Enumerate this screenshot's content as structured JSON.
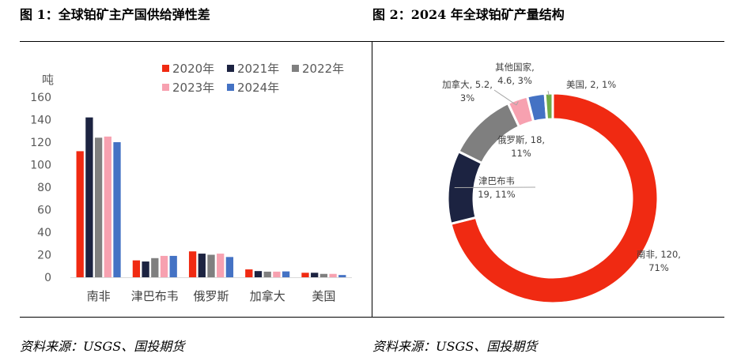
{
  "left_figure": {
    "title": "图 1：全球铂矿主产国供给弹性差",
    "source": "资料来源：USGS、国投期货"
  },
  "right_figure": {
    "title": "图 2：2024 年全球铂矿产量结构",
    "source": "资料来源：USGS、国投期货"
  },
  "chart_data": [
    {
      "type": "bar",
      "title": "",
      "ylabel": "吨",
      "xlabel": "",
      "ylim": [
        0,
        160
      ],
      "yticks": [
        0,
        20,
        40,
        60,
        80,
        100,
        120,
        140,
        160
      ],
      "grid": false,
      "legend_position": "top-right",
      "categories": [
        "南非",
        "津巴布韦",
        "俄罗斯",
        "加拿大",
        "美国"
      ],
      "series": [
        {
          "name": "2020年",
          "color": "#f02a12",
          "values": [
            112,
            15,
            23,
            7,
            4
          ]
        },
        {
          "name": "2021年",
          "color": "#1c2341",
          "values": [
            142,
            14,
            21,
            5.5,
            4
          ]
        },
        {
          "name": "2022年",
          "color": "#7f7f7f",
          "values": [
            124,
            17,
            20,
            5,
            3
          ]
        },
        {
          "name": "2023年",
          "color": "#f7a1b0",
          "values": [
            125,
            19,
            21,
            5,
            3
          ]
        },
        {
          "name": "2024年",
          "color": "#4472c4",
          "values": [
            120,
            19,
            18,
            5.2,
            2
          ]
        }
      ]
    },
    {
      "type": "pie",
      "style": "donut",
      "title": "",
      "slices": [
        {
          "label": "南非",
          "value": 120,
          "percent": "71%",
          "color": "#f02a12",
          "text_lines": [
            "南非, 120,",
            "71%"
          ]
        },
        {
          "label": "津巴布韦",
          "value": 19,
          "percent": "11%",
          "color": "#1c2341",
          "text_lines": [
            "津巴布韦",
            "19, 11%"
          ]
        },
        {
          "label": "俄罗斯",
          "value": 18,
          "percent": "11%",
          "color": "#7f7f7f",
          "text_lines": [
            "俄罗斯, 18,",
            "11%"
          ]
        },
        {
          "label": "加拿大",
          "value": 5.2,
          "percent": "3%",
          "color": "#f7a1b0",
          "text_lines": [
            "加拿大, 5.2,",
            "3%"
          ]
        },
        {
          "label": "其他国家",
          "value": 4.6,
          "percent": "3%",
          "color": "#4472c4",
          "text_lines": [
            "其他国家,",
            "4.6, 3%"
          ]
        },
        {
          "label": "美国",
          "value": 2,
          "percent": "1%",
          "color": "#70ad47",
          "text_lines": [
            "美国, 2, 1%"
          ]
        }
      ]
    }
  ]
}
